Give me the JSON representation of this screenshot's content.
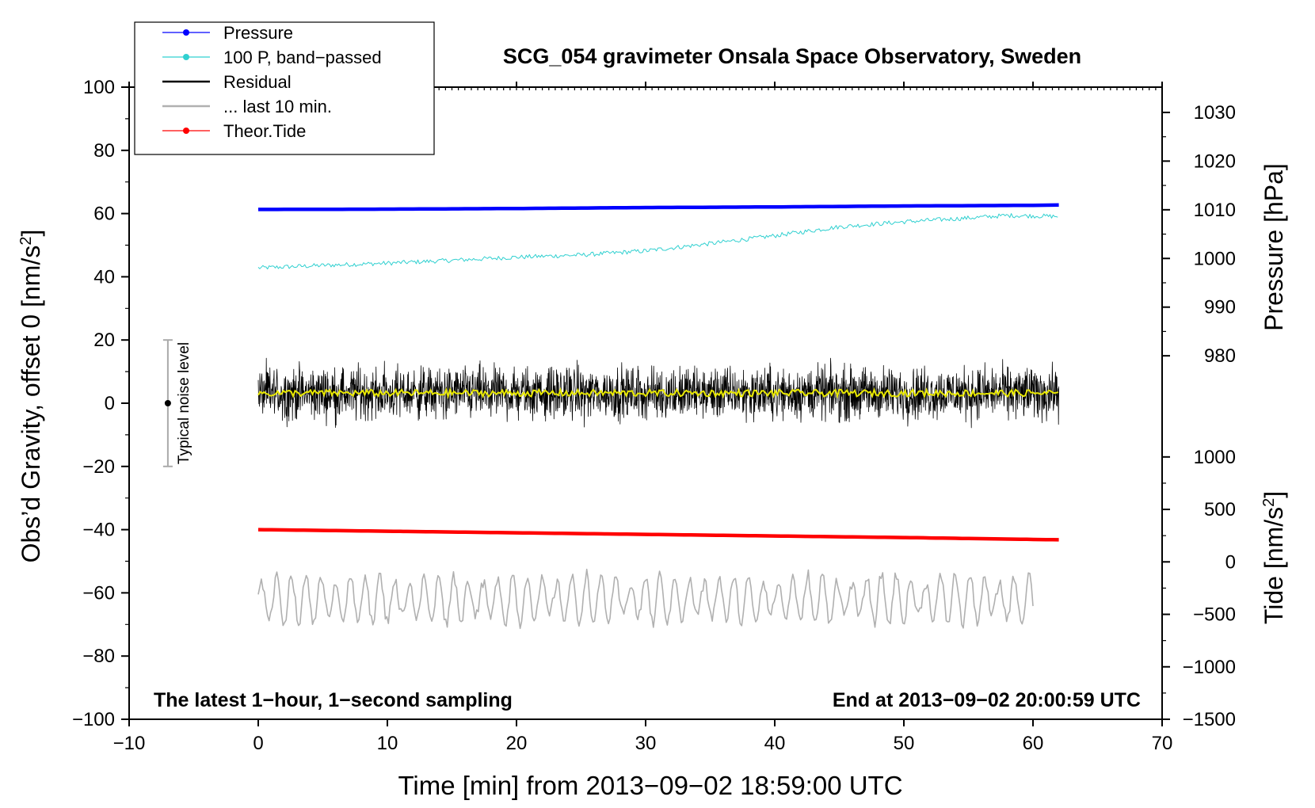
{
  "chart_data": {
    "type": "line",
    "title": "SCG_054 gravimeter Onsala Space Observatory, Sweden",
    "xlabel": "Time [min] from 2013−09−02 18:59:00 UTC",
    "ylabel": "Obs’d Gravity, offset 0 [nm/s²]",
    "xlim": [
      -10,
      70
    ],
    "ylim": [
      -100,
      100
    ],
    "x_ticks": [
      -10,
      0,
      10,
      20,
      30,
      40,
      50,
      60,
      70
    ],
    "x_tick_labels": [
      "−10",
      "0",
      "10",
      "20",
      "30",
      "40",
      "50",
      "60",
      "70"
    ],
    "y_ticks": [
      100,
      80,
      60,
      40,
      20,
      0,
      -20,
      -40,
      -60,
      -80,
      -100
    ],
    "y_tick_labels": [
      "100",
      "80",
      "60",
      "40",
      "20",
      "0",
      "−20",
      "−40",
      "−60",
      "−80",
      "−100"
    ],
    "pressure_axis": {
      "label": "Pressure [hPa]",
      "ticks": [
        1030,
        1020,
        1010,
        1000,
        990,
        980
      ],
      "tick_labels": [
        "1030",
        "1020",
        "1010",
        "1000",
        "990",
        "980"
      ],
      "gravity_ref": [
        [
          1030,
          92
        ],
        [
          980,
          15
        ]
      ]
    },
    "tide_axis": {
      "label": "Tide [nm/s²]",
      "ticks": [
        1000,
        500,
        0,
        -500,
        -1000,
        -1500
      ],
      "tick_labels": [
        "1000",
        "500",
        "0",
        "−500",
        "−1000",
        "−1500"
      ],
      "gravity_ref": [
        [
          1000,
          -17
        ],
        [
          -1500,
          -100
        ]
      ]
    },
    "legend_position": "top-left",
    "annotations": {
      "left": "The latest 1−hour, 1−second sampling",
      "right": "End at 2013−09−02 20:00:59 UTC",
      "noise": "Typical noise level"
    },
    "noise_bar": {
      "x": -7,
      "center": 0,
      "low": -20,
      "high": 20
    },
    "series": [
      {
        "name": "Pressure",
        "color": "#0000ff",
        "legend_marker": true,
        "x": [
          0,
          10,
          20,
          30,
          40,
          50,
          60,
          62
        ],
        "y": [
          61.3,
          61.4,
          61.6,
          61.9,
          62.1,
          62.4,
          62.6,
          62.7
        ]
      },
      {
        "name": "100 P, band−passed",
        "color": "#30d0d0",
        "legend_marker": true,
        "x": [
          0,
          5,
          10,
          15,
          20,
          25,
          30,
          35,
          40,
          45,
          50,
          55,
          58,
          62
        ],
        "y": [
          42.8,
          43.6,
          44.3,
          45.2,
          46.2,
          46.9,
          48.2,
          50.5,
          53,
          55.8,
          57.4,
          58.6,
          59.4,
          59.1
        ]
      },
      {
        "name": "Residual",
        "color": "#000000",
        "legend_marker": false,
        "x": [
          0,
          62
        ],
        "mean": 3.2,
        "amplitude": 8
      },
      {
        "name": "... last 10 min.",
        "color": "#b0b0b0",
        "legend_marker": false,
        "x": [
          0,
          60
        ],
        "center": -62,
        "amplitude": 8
      },
      {
        "name": "Theor.Tide",
        "color": "#ff0000",
        "legend_marker": true,
        "x": [
          0,
          10,
          20,
          30,
          40,
          50,
          60,
          62
        ],
        "y": [
          -40,
          -40.5,
          -41,
          -41.5,
          -42,
          -42.5,
          -43.1,
          -43.2
        ]
      }
    ],
    "residual_smooth_color": "#e8e800"
  }
}
